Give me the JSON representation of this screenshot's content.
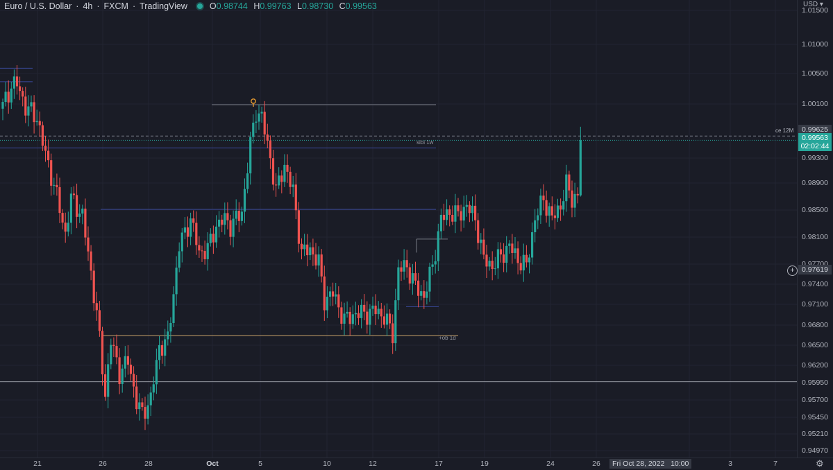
{
  "header": {
    "symbol": "Euro / U.S. Dollar",
    "interval": "4h",
    "exchange": "FXCM",
    "source": "TradingView",
    "ohlc": [
      {
        "k": "O",
        "v": "0.98744"
      },
      {
        "k": "H",
        "v": "0.99763"
      },
      {
        "k": "L",
        "v": "0.98730"
      },
      {
        "k": "C",
        "v": "0.99563"
      }
    ]
  },
  "price_axis": {
    "currency": "USD",
    "ticks": [
      "1.01500",
      "1.01000",
      "1.00500",
      "1.00100",
      "0.99300",
      "0.98900",
      "0.98500",
      "0.98100",
      "0.97700",
      "0.97400",
      "0.97100",
      "0.96800",
      "0.96500",
      "0.96200",
      "0.95950",
      "0.95700",
      "0.95450",
      "0.95210",
      "0.94970"
    ],
    "tag_ce": "0.99625",
    "tag_last": "0.99563",
    "tag_countdown": "02:02:44",
    "tag_cursor": "0.97619"
  },
  "time_axis": {
    "ticks": [
      "21",
      "26",
      "28",
      "Oct",
      "5",
      "10",
      "12",
      "17",
      "19",
      "24",
      "26",
      "3",
      "7"
    ],
    "crosshair_date": "Fri Oct 28, 2022",
    "crosshair_time": "10:00",
    "partial_label": "v"
  },
  "annotations": {
    "ce_label": "ce 12M",
    "sibi_label": "sibi 1w",
    "ob_label": "+ob 1d"
  },
  "colors": {
    "up": "#26a69a",
    "down": "#ef5350",
    "background": "#1a1c26",
    "level_blue": "#3b4a9e",
    "level_orange": "#c9a46a"
  },
  "chart_data": {
    "type": "candlestick",
    "symbol": "EURUSD",
    "interval": "4h",
    "price_range": [
      0.947,
      1.0165
    ],
    "levels": [
      {
        "name": "ce 12M",
        "price": 0.99625
      },
      {
        "name": "sibi 1w",
        "price": 0.9945
      },
      {
        "name": "+ob 1d",
        "price": 0.9667
      },
      {
        "price": 0.9599
      },
      {
        "price": 0.9854
      },
      {
        "price": 1.0043
      }
    ],
    "last": {
      "open": 0.98744,
      "high": 0.99763,
      "low": 0.9873,
      "close": 0.99563
    }
  }
}
